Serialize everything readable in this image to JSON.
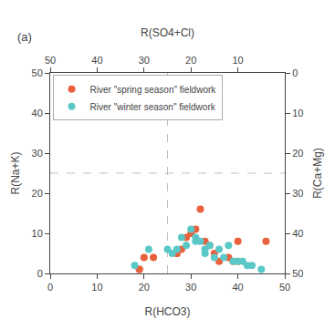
{
  "chart_data": {
    "type": "scatter",
    "xlabel": "R(HCO3)",
    "ylabel": "R(Na+K)",
    "x2label": "R(SO4+Cl)",
    "y2label": "R(Ca+Mg)",
    "series": [
      {
        "name": "River \"spring season\" fieldwork",
        "color": "#E8603C",
        "marker": "circle",
        "x": [
          19,
          19,
          20,
          22,
          27,
          27,
          28,
          29,
          30,
          31,
          32,
          33,
          34,
          35,
          36,
          38,
          39,
          40,
          40,
          46
        ],
        "values": [
          1,
          1,
          4,
          4,
          5,
          5,
          6,
          9,
          10,
          11,
          16,
          8,
          7,
          5,
          3,
          4,
          3,
          3,
          8,
          8
        ]
      },
      {
        "name": "River \"winter season\" fieldwork",
        "color": "#5BC8C8",
        "marker": "circle",
        "x": [
          18,
          21,
          25,
          26,
          27,
          28,
          29,
          30,
          31,
          31,
          32,
          33,
          33,
          34,
          35,
          36,
          37,
          38,
          39,
          40,
          41,
          42,
          43,
          45
        ],
        "values": [
          2,
          6,
          6,
          5,
          6,
          9,
          7,
          11,
          9,
          8,
          8,
          5,
          6,
          7,
          4,
          6,
          4,
          7,
          3,
          3,
          3,
          2,
          2,
          1
        ]
      }
    ],
    "reference_lines": [
      {
        "axis": "x",
        "value": 25,
        "color": "#c0c0c0",
        "line_style": "dashed"
      },
      {
        "axis": "y",
        "value": 25,
        "color": "#c0c0c0",
        "line_style": "dashed"
      }
    ],
    "xlim": [
      0,
      50
    ],
    "ylim": [
      0,
      50
    ],
    "xticks": [
      0,
      10,
      20,
      30,
      40,
      50
    ],
    "yticks": [
      0,
      10,
      20,
      30,
      40,
      50
    ],
    "x2lim": [
      50,
      0
    ],
    "x2ticks": [
      50,
      40,
      30,
      20,
      10
    ],
    "y2lim": [
      50,
      0
    ],
    "y2ticks": [
      0,
      10,
      20,
      30,
      40,
      50
    ],
    "annotations": [
      {
        "text": "(a)"
      }
    ],
    "legend": "upper left",
    "grid": false
  }
}
